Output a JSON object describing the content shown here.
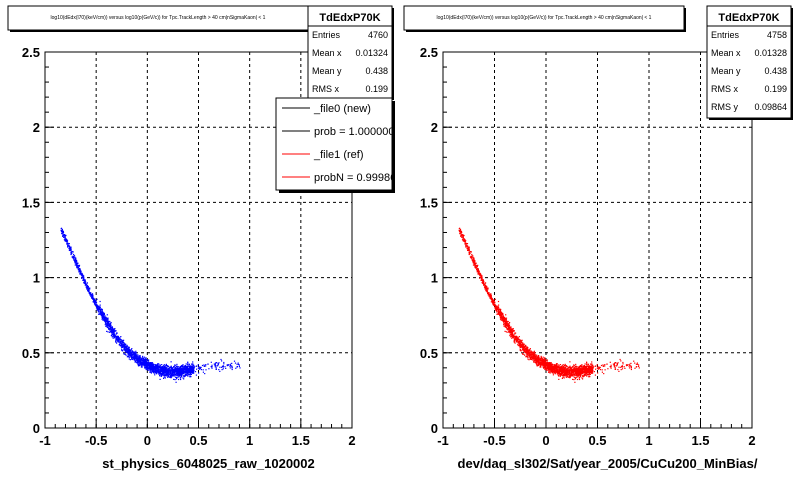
{
  "colors": {
    "background": "#ffffff",
    "frame": "#000000",
    "grid": "#000000",
    "new_series": "#0000ff",
    "ref_series": "#ff0000"
  },
  "footer_text": "",
  "chart_data": [
    {
      "type": "scatter",
      "title": "log10(dEdx(l70)(keV/cm)) versus log10(p(GeV/c)) for Tpc.TrackLength > 40 cm|nSigmaKaon| < 1",
      "xlabel": "st_physics_6048025_raw_1020002",
      "ylabel": "",
      "xlim": [
        -1,
        2
      ],
      "ylim": [
        0,
        2.5
      ],
      "xticks": [
        "-1",
        "-0.5",
        "0",
        "0.5",
        "1",
        "1.5",
        "2"
      ],
      "yticks": [
        "0",
        "0.5",
        "1",
        "1.5",
        "2",
        "2.5"
      ],
      "grid": true,
      "color": "#0000ff",
      "band": {
        "x": [
          -0.85,
          -0.8,
          -0.7,
          -0.6,
          -0.5,
          -0.4,
          -0.3,
          -0.2,
          -0.1,
          0.0,
          0.1,
          0.2,
          0.3,
          0.4,
          0.5,
          0.6,
          0.7,
          0.8,
          0.9
        ],
        "y": [
          1.33,
          1.25,
          1.1,
          0.95,
          0.82,
          0.7,
          0.6,
          0.52,
          0.46,
          0.42,
          0.39,
          0.38,
          0.38,
          0.39,
          0.4,
          0.41,
          0.42,
          0.42,
          0.42
        ]
      },
      "stats": {
        "name": "TdEdxP70K",
        "entries_label": "Entries",
        "entries": "4760",
        "mean_x_label": "Mean x",
        "mean_x": "0.01324",
        "mean_y_label": "Mean y",
        "mean_y": "0.438",
        "rms_x_label": "RMS x",
        "rms_x": "0.199"
      },
      "legend": [
        {
          "label": "_file0 (new)",
          "color": "#000000"
        },
        {
          "label": "prob = 1.000000",
          "color": "#000000"
        },
        {
          "label": "_file1 (ref)",
          "color": "#ff0000"
        },
        {
          "label": "probN = 0.999860",
          "color": "#ff0000"
        }
      ]
    },
    {
      "type": "scatter",
      "title": "log10(dEdx(l70)(keV/cm)) versus log10(p(GeV/c)) for Tpc.TrackLength > 40 cm|nSigmaKaon| < 1",
      "xlabel": "dev/daq_sl302/Sat/year_2005/CuCu200_MinBias/",
      "ylabel": "",
      "xlim": [
        -1,
        2
      ],
      "ylim": [
        0,
        2.5
      ],
      "xticks": [
        "-1",
        "-0.5",
        "0",
        "0.5",
        "1",
        "1.5",
        "2"
      ],
      "yticks": [
        "0",
        "0.5",
        "1",
        "1.5",
        "2",
        "2.5"
      ],
      "grid": true,
      "color": "#ff0000",
      "band": {
        "x": [
          -0.85,
          -0.8,
          -0.7,
          -0.6,
          -0.5,
          -0.4,
          -0.3,
          -0.2,
          -0.1,
          0.0,
          0.1,
          0.2,
          0.3,
          0.4,
          0.5,
          0.6,
          0.7,
          0.8,
          0.9
        ],
        "y": [
          1.33,
          1.25,
          1.1,
          0.95,
          0.82,
          0.7,
          0.6,
          0.52,
          0.46,
          0.42,
          0.39,
          0.38,
          0.38,
          0.39,
          0.4,
          0.41,
          0.42,
          0.42,
          0.42
        ]
      },
      "stats": {
        "name": "TdEdxP70K",
        "entries_label": "Entries",
        "entries": "4758",
        "mean_x_label": "Mean x",
        "mean_x": "0.01328",
        "mean_y_label": "Mean y",
        "mean_y": "0.438",
        "rms_x_label": "RMS x",
        "rms_x": "0.199",
        "rms_y_label": "RMS y",
        "rms_y": "0.09864"
      }
    }
  ]
}
